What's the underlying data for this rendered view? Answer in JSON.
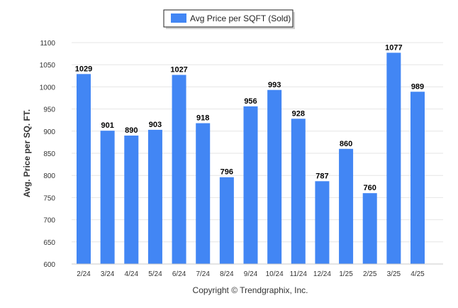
{
  "chart_data": {
    "type": "bar",
    "categories": [
      "2/24",
      "3/24",
      "4/24",
      "5/24",
      "6/24",
      "7/24",
      "8/24",
      "9/24",
      "10/24",
      "11/24",
      "12/24",
      "1/25",
      "2/25",
      "3/25",
      "4/25"
    ],
    "series": [
      {
        "name": "Avg Price per SQFT (Sold)",
        "color": "#4286f4",
        "values": [
          1029,
          901,
          890,
          903,
          1027,
          918,
          796,
          956,
          993,
          928,
          787,
          860,
          760,
          1077,
          989
        ]
      }
    ],
    "ylabel": "Avg. Price per SQ. FT.",
    "xlabel": "",
    "ylim": [
      600,
      1100
    ],
    "yticks": [
      600,
      650,
      700,
      750,
      800,
      850,
      900,
      950,
      1000,
      1050,
      1100
    ],
    "grid": true,
    "legend": "top-center",
    "data_labels": true
  },
  "footer": {
    "credit": "Copyright © Trendgraphix, Inc."
  }
}
